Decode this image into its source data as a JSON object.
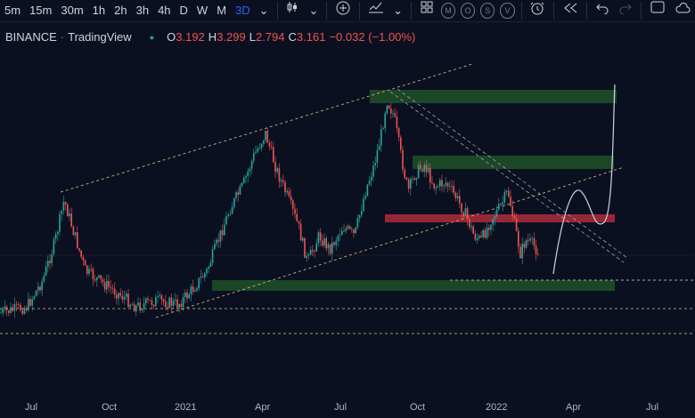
{
  "toolbar": {
    "timeframes": [
      "5m",
      "15m",
      "30m",
      "1h",
      "2h",
      "3h",
      "4h",
      "D",
      "W",
      "M",
      "3D"
    ],
    "active_timeframe": "3D",
    "indicator_circles": [
      "M",
      "O",
      "S",
      "V"
    ]
  },
  "legend": {
    "symbol": "BINANCE",
    "source": "TradingView",
    "open_label": "O",
    "open": "3.192",
    "high_label": "H",
    "high": "3.299",
    "low_label": "L",
    "low": "2.794",
    "close_label": "C",
    "close": "3.161",
    "change": "−0.032 (−1.00%)"
  },
  "xaxis": {
    "labels": [
      "Jul",
      "Oct",
      "2021",
      "Apr",
      "Jul",
      "Oct",
      "2022",
      "Apr",
      "Jul"
    ]
  },
  "colors": {
    "background": "#0b1021",
    "up": "#26a69a",
    "down": "#ef5350",
    "zone_green": "#1e5128",
    "zone_red": "#a52a3a"
  }
}
